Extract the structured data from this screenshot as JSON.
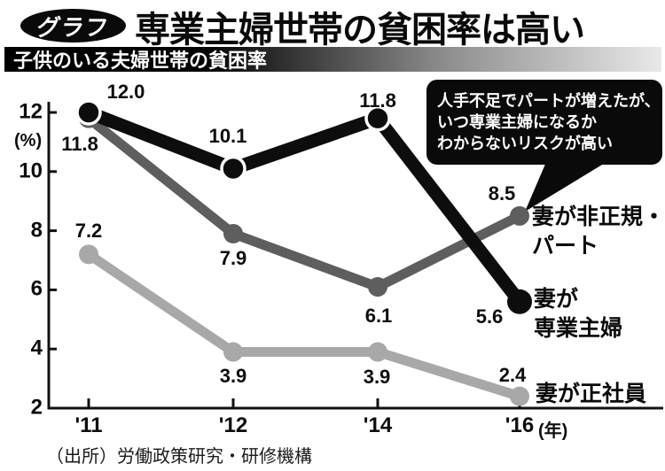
{
  "header": {
    "badge_label": "グラフ",
    "title": "専業主婦世帯の貧困率は高い",
    "subtitle": "子供のいる夫婦世帯の貧困率"
  },
  "callout": {
    "text": "人手不足でパートが増えたが、\nいつ専業主婦になるか\nわからないリスクが高い"
  },
  "source_note": "（出所）労働政策研究・研修機構",
  "colors": {
    "housewife_line": "#0d0d0d",
    "parttime_line": "#5e5e5e",
    "employee_line": "#a8a8a8",
    "callout_bg": "#0a0a0a"
  },
  "chart_data": {
    "type": "line",
    "title": "子供のいる夫婦世帯の貧困率",
    "x_categories": [
      "'11",
      "'12",
      "'14",
      "'16"
    ],
    "x_axis_unit": "(年)",
    "y_axis_unit": "(%)",
    "ylim": [
      2,
      12.6
    ],
    "yticks": [
      2,
      4,
      6,
      8,
      10,
      12
    ],
    "grid": false,
    "legend_position": "right-of-line-endpoints",
    "series": [
      {
        "name": "妻が専業主婦",
        "display_label": "妻が\n専業主婦",
        "color": "#0d0d0d",
        "values": [
          12.0,
          10.1,
          11.8,
          5.6
        ]
      },
      {
        "name": "妻が非正規・パート",
        "display_label": "妻が非正規・\nパート",
        "color": "#5e5e5e",
        "values": [
          11.8,
          7.9,
          6.1,
          8.5
        ]
      },
      {
        "name": "妻が正社員",
        "display_label": "妻が正社員",
        "color": "#a8a8a8",
        "values": [
          7.2,
          3.9,
          3.9,
          2.4
        ]
      }
    ]
  }
}
